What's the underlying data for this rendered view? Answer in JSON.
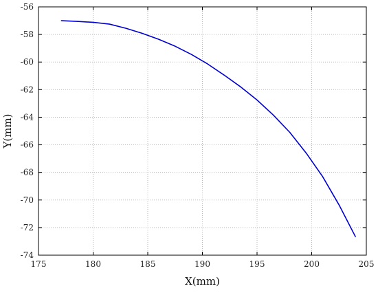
{
  "chart_data": {
    "type": "line",
    "xlabel": "X(mm)",
    "ylabel": "Y(mm)",
    "xlim": [
      175,
      205
    ],
    "ylim": [
      -74,
      -56
    ],
    "grid": true,
    "x_ticks": [
      "175",
      "180",
      "185",
      "190",
      "195",
      "200",
      "205"
    ],
    "y_ticks": [
      "-56",
      "-58",
      "-60",
      "-62",
      "-64",
      "-66",
      "-68",
      "-70",
      "-72",
      "-74"
    ],
    "series": [
      {
        "color": "#0000cc",
        "x": [
          177.1,
          178.5,
          180.0,
          181.5,
          183.0,
          184.5,
          186.0,
          187.5,
          189.0,
          190.5,
          192.0,
          193.5,
          195.0,
          196.5,
          198.0,
          199.5,
          201.0,
          202.5,
          204.0
        ],
        "y": [
          -57.0,
          -57.05,
          -57.12,
          -57.25,
          -57.55,
          -57.92,
          -58.35,
          -58.85,
          -59.45,
          -60.15,
          -60.95,
          -61.8,
          -62.75,
          -63.85,
          -65.1,
          -66.6,
          -68.3,
          -70.35,
          -72.65
        ]
      }
    ]
  }
}
